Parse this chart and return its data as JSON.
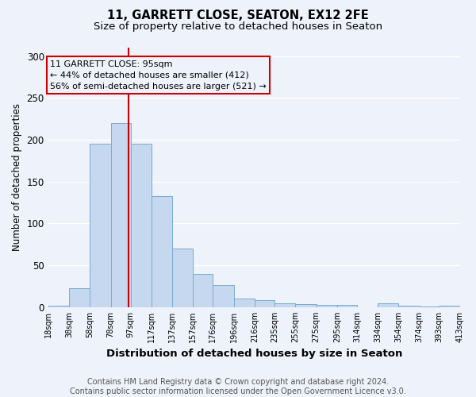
{
  "title1": "11, GARRETT CLOSE, SEATON, EX12 2FE",
  "title2": "Size of property relative to detached houses in Seaton",
  "xlabel": "Distribution of detached houses by size in Seaton",
  "ylabel": "Number of detached properties",
  "bin_edges": [
    18,
    38,
    58,
    78,
    97,
    117,
    137,
    157,
    176,
    196,
    216,
    235,
    255,
    275,
    295,
    314,
    334,
    354,
    374,
    393,
    413
  ],
  "bar_heights": [
    2,
    23,
    195,
    220,
    195,
    133,
    70,
    40,
    26,
    10,
    8,
    5,
    4,
    3,
    3,
    0,
    5,
    2,
    1,
    2
  ],
  "bar_color": "#c5d8f0",
  "bar_edgecolor": "#7aabce",
  "property_size": 95,
  "red_line_color": "#cc0000",
  "annotation_line1": "11 GARRETT CLOSE: 95sqm",
  "annotation_line2": "← 44% of detached houses are smaller (412)",
  "annotation_line3": "56% of semi-detached houses are larger (521) →",
  "annotation_box_edgecolor": "#cc0000",
  "ylim": [
    0,
    310
  ],
  "yticks": [
    0,
    50,
    100,
    150,
    200,
    250,
    300
  ],
  "tick_labels": [
    "18sqm",
    "38sqm",
    "58sqm",
    "78sqm",
    "97sqm",
    "117sqm",
    "137sqm",
    "157sqm",
    "176sqm",
    "196sqm",
    "216sqm",
    "235sqm",
    "255sqm",
    "275sqm",
    "295sqm",
    "314sqm",
    "334sqm",
    "354sqm",
    "374sqm",
    "393sqm",
    "413sqm"
  ],
  "footer_text": "Contains HM Land Registry data © Crown copyright and database right 2024.\nContains public sector information licensed under the Open Government Licence v3.0.",
  "bg_color": "#eef2fb",
  "plot_bg_color": "#eef2fb",
  "grid_color": "#ffffff",
  "title_fontsize": 10.5,
  "subtitle_fontsize": 9.5,
  "xlabel_fontsize": 9.5,
  "ylabel_fontsize": 8.5,
  "tick_fontsize": 7,
  "ytick_fontsize": 8.5,
  "footer_fontsize": 7,
  "annot_fontsize": 8
}
